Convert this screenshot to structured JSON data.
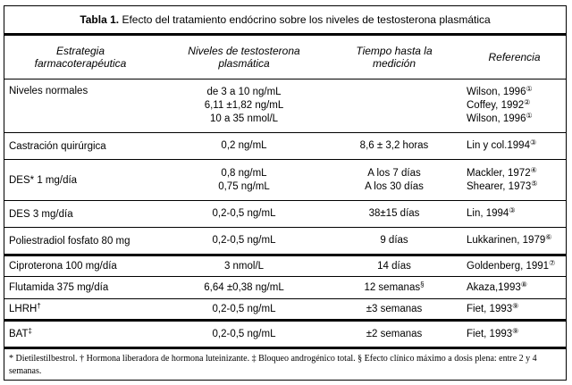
{
  "title": {
    "label": "Tabla 1.",
    "text": " Efecto del tratamiento endócrino sobre los niveles de testosterona plasmática"
  },
  "headers": {
    "c1a": "Estrategia",
    "c1b": "farmacoterapéutica",
    "c2a": "Niveles de testosterona",
    "c2b": "plasmática",
    "c3a": "Tiempo hasta la",
    "c3b": "medición",
    "c4": "Referencia"
  },
  "rows": [
    {
      "strategy": "Niveles normales",
      "strategy_mark": "",
      "levels": [
        "de 3 a 10 ng/mL",
        "6,11 ±1,82 ng/mL",
        "10 a 35 nmol/L"
      ],
      "times": [],
      "time_mark": "",
      "refs": [
        {
          "t": "Wilson, 1996",
          "n": "①"
        },
        {
          "t": "Coffey, 1992",
          "n": "②"
        },
        {
          "t": "Wilson, 1996",
          "n": "①"
        }
      ]
    },
    {
      "strategy": "Castración quirúrgica",
      "strategy_mark": "",
      "levels": [
        "0,2 ng/mL"
      ],
      "times": [
        "8,6 ± 3,2 horas"
      ],
      "time_mark": "",
      "refs": [
        {
          "t": "Lin y col.1994",
          "n": "③"
        }
      ]
    },
    {
      "strategy": "DES* 1 mg/día",
      "strategy_mark": "",
      "levels": [
        "0,8 ng/mL",
        "0,75 ng/mL"
      ],
      "times": [
        "A los 7 días",
        "A los 30 días"
      ],
      "time_mark": "",
      "refs": [
        {
          "t": "Mackler, 1972",
          "n": "④"
        },
        {
          "t": "Shearer, 1973",
          "n": "⑤"
        }
      ]
    },
    {
      "strategy": "DES 3 mg/día",
      "strategy_mark": "",
      "levels": [
        "0,2-0,5 ng/mL"
      ],
      "times": [
        "38±15 días"
      ],
      "time_mark": "",
      "refs": [
        {
          "t": "Lin, 1994",
          "n": "③"
        }
      ]
    },
    {
      "strategy": "Poliestradiol fosfato 80 mg",
      "strategy_mark": "",
      "levels": [
        "0,2-0,5 ng/mL"
      ],
      "times": [
        "9 días"
      ],
      "time_mark": "",
      "refs": [
        {
          "t": "Lukkarinen, 1979",
          "n": "⑥"
        }
      ]
    },
    {
      "strategy": "Ciproterona 100 mg/día",
      "strategy_mark": "",
      "levels": [
        "3 nmol/L"
      ],
      "times": [
        "14 días"
      ],
      "time_mark": "",
      "refs": [
        {
          "t": "Goldenberg, 1991",
          "n": "⑦"
        }
      ]
    },
    {
      "strategy": "Flutamida 375 mg/día",
      "strategy_mark": "",
      "levels": [
        "6,64 ±0,38 ng/mL"
      ],
      "times": [
        "12 semanas"
      ],
      "time_mark": "§",
      "refs": [
        {
          "t": "Akaza,1993",
          "n": "⑧"
        }
      ]
    },
    {
      "strategy": "LHRH",
      "strategy_mark": "†",
      "levels": [
        "0,2-0,5 ng/mL"
      ],
      "times": [
        "±3 semanas"
      ],
      "time_mark": "",
      "refs": [
        {
          "t": "Fiet, 1993",
          "n": "⑨"
        }
      ]
    },
    {
      "strategy": "BAT",
      "strategy_mark": "‡",
      "levels": [
        "0,2-0,5 ng/mL"
      ],
      "times": [
        "±2 semanas"
      ],
      "time_mark": "",
      "refs": [
        {
          "t": "Fiet, 1993",
          "n": "⑨"
        }
      ]
    }
  ],
  "footnote": "* Dietilestilbestrol. † Hormona liberadora de hormona luteinizante. ‡ Bloqueo androgénico total. § Efecto clínico máximo a dosis plena: entre 2 y 4 semanas."
}
